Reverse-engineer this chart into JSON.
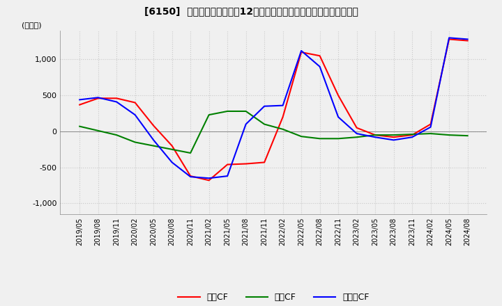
{
  "title": "[6150]  キャッシュフローの12か月移動合計の対前年同期増減額の推移",
  "ylabel": "(百万円)",
  "ylim": [
    -1150,
    1400
  ],
  "yticks": [
    -1000,
    -500,
    0,
    500,
    1000
  ],
  "bg_color": "#f0f0f0",
  "grid_color": "#c8c8c8",
  "legend_labels": [
    "営業CF",
    "投資CF",
    "フリーCF"
  ],
  "legend_colors": [
    "#ff0000",
    "#008000",
    "#0000ff"
  ],
  "dates": [
    "2019/05",
    "2019/08",
    "2019/11",
    "2020/02",
    "2020/05",
    "2020/08",
    "2020/11",
    "2021/02",
    "2021/05",
    "2021/08",
    "2021/11",
    "2022/02",
    "2022/05",
    "2022/08",
    "2022/11",
    "2023/02",
    "2023/05",
    "2023/08",
    "2023/11",
    "2024/02",
    "2024/05",
    "2024/08"
  ],
  "operating_cf": [
    370,
    460,
    460,
    400,
    80,
    -200,
    -620,
    -680,
    -460,
    -450,
    -430,
    200,
    1100,
    1050,
    500,
    50,
    -50,
    -80,
    -50,
    100,
    1280,
    1260
  ],
  "investing_cf": [
    70,
    10,
    -50,
    -150,
    -200,
    -250,
    -300,
    230,
    280,
    280,
    100,
    30,
    -70,
    -100,
    -100,
    -80,
    -50,
    -50,
    -40,
    -30,
    -50,
    -60
  ],
  "free_cf": [
    440,
    470,
    410,
    230,
    -120,
    -430,
    -630,
    -650,
    -620,
    100,
    350,
    360,
    1120,
    900,
    200,
    -30,
    -80,
    -120,
    -80,
    60,
    1300,
    1280
  ]
}
